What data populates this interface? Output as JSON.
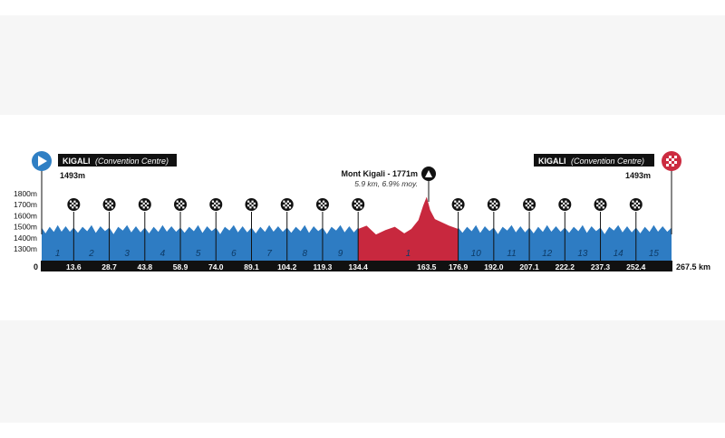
{
  "colors": {
    "sea_blue": "#2e7cc3",
    "climb_red": "#c8283e",
    "axis_black": "#111111",
    "start_blue": "#2f7fc4",
    "finish_red": "#cc2b40"
  },
  "start": {
    "name": "KIGALI",
    "sub": "(Convention Centre)",
    "elevation": "1493m",
    "icon": "play-icon"
  },
  "finish": {
    "name": "KIGALI",
    "sub": "(Convention Centre)",
    "elevation": "1493m",
    "icon": "checkered-flag-icon"
  },
  "summit": {
    "name": "Mont Kigali - 1771m",
    "detail": "5.9 km, 6.9% moy.",
    "icon": "mountain-icon"
  },
  "zero_label": "0",
  "total_label": "267.5 km",
  "chart_data": {
    "type": "area",
    "x_unit": "km",
    "y_unit": "m",
    "x_range": [
      0,
      267.5
    ],
    "y_range": [
      1200,
      1850
    ],
    "ylabels": [
      "1800m",
      "1700m",
      "1600m",
      "1500m",
      "1400m",
      "1300m"
    ],
    "yticks": [
      1800,
      1700,
      1600,
      1500,
      1400,
      1300
    ],
    "checkpoints_km": [
      13.6,
      28.7,
      43.8,
      58.9,
      74.0,
      89.1,
      104.2,
      119.3,
      134.4,
      163.5,
      176.9,
      192.0,
      207.1,
      222.2,
      237.3,
      252.4
    ],
    "checkpoint_labels": [
      "13.6",
      "28.7",
      "43.8",
      "58.9",
      "74.0",
      "89.1",
      "104.2",
      "119.3",
      "134.4",
      "163.5",
      "176.9",
      "192.0",
      "207.1",
      "222.2",
      "237.3",
      "252.4"
    ],
    "sprint_markers_km": [
      13.6,
      28.7,
      43.8,
      58.9,
      74.0,
      89.1,
      104.2,
      119.3,
      134.4,
      176.9,
      192.0,
      207.1,
      222.2,
      237.3,
      252.4
    ],
    "summit_km": 163.5,
    "summit_elevation": 1771,
    "laps": [
      {
        "label": "1",
        "from": 0,
        "to": 13.6
      },
      {
        "label": "2",
        "from": 13.6,
        "to": 28.7
      },
      {
        "label": "3",
        "from": 28.7,
        "to": 43.8
      },
      {
        "label": "4",
        "from": 43.8,
        "to": 58.9
      },
      {
        "label": "5",
        "from": 58.9,
        "to": 74.0
      },
      {
        "label": "6",
        "from": 74.0,
        "to": 89.1
      },
      {
        "label": "7",
        "from": 89.1,
        "to": 104.2
      },
      {
        "label": "8",
        "from": 104.2,
        "to": 119.3
      },
      {
        "label": "9",
        "from": 119.3,
        "to": 134.4
      },
      {
        "label": "1",
        "from": 134.4,
        "to": 176.9,
        "climb": true
      },
      {
        "label": "10",
        "from": 176.9,
        "to": 192.0
      },
      {
        "label": "11",
        "from": 192.0,
        "to": 207.1
      },
      {
        "label": "12",
        "from": 207.1,
        "to": 222.2
      },
      {
        "label": "13",
        "from": 222.2,
        "to": 237.3
      },
      {
        "label": "14",
        "from": 237.3,
        "to": 252.4
      },
      {
        "label": "15",
        "from": 252.4,
        "to": 267.5
      }
    ],
    "circuit_profile_fraction": [
      0,
      0.12,
      0.25,
      0.38,
      0.5,
      0.62,
      0.75,
      0.88,
      1
    ],
    "circuit_profile_elevation": [
      1493,
      1440,
      1500,
      1460,
      1515,
      1450,
      1505,
      1455,
      1493
    ],
    "climb_profile_km": [
      134.4,
      138,
      142,
      146,
      150,
      154,
      157,
      160,
      162,
      163.5,
      165,
      167,
      170,
      173,
      176.9
    ],
    "climb_profile_elevation": [
      1480,
      1510,
      1430,
      1470,
      1500,
      1440,
      1480,
      1560,
      1690,
      1771,
      1650,
      1570,
      1540,
      1510,
      1480
    ]
  }
}
